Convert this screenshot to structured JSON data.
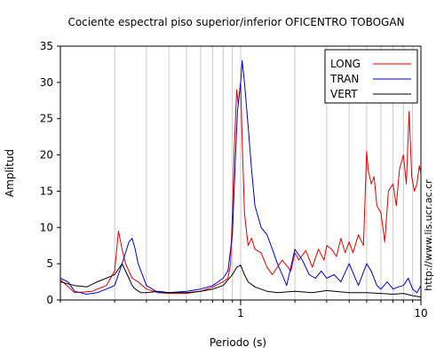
{
  "chart_data": {
    "type": "line",
    "title": "Cociente espectral piso superior/inferior OFICENTRO TOBOGAN",
    "xlabel": "Periodo (s)",
    "ylabel": "Amplitud",
    "x_scale": "log",
    "xlim": [
      0.1,
      10
    ],
    "ylim": [
      0,
      35
    ],
    "y_ticks": [
      "0",
      "5",
      "10",
      "15",
      "20",
      "25",
      "30",
      "35"
    ],
    "x_ticks": [
      {
        "value": 1,
        "label": "1"
      },
      {
        "value": 10,
        "label": "10"
      }
    ],
    "grid": "vertical",
    "legend_position": "top-right",
    "side_text": "http://www.lis.ucr.ac.cr",
    "colors": {
      "LONG": "#e00000",
      "TRAN": "#0000cc",
      "VERT": "#000000"
    },
    "series": [
      {
        "name": "LONG",
        "x": [
          0.1,
          0.12,
          0.15,
          0.18,
          0.2,
          0.21,
          0.22,
          0.23,
          0.25,
          0.27,
          0.3,
          0.35,
          0.4,
          0.5,
          0.6,
          0.7,
          0.8,
          0.85,
          0.88,
          0.9,
          0.92,
          0.95,
          0.97,
          1.0,
          1.02,
          1.05,
          1.1,
          1.15,
          1.2,
          1.3,
          1.4,
          1.5,
          1.7,
          1.9,
          2.0,
          2.1,
          2.3,
          2.5,
          2.7,
          2.9,
          3.0,
          3.2,
          3.4,
          3.6,
          3.8,
          4.0,
          4.2,
          4.5,
          4.8,
          5.0,
          5.1,
          5.3,
          5.5,
          5.7,
          6.0,
          6.3,
          6.6,
          7.0,
          7.3,
          7.6,
          8.0,
          8.3,
          8.6,
          8.9,
          9.2,
          9.5,
          9.8,
          10.0
        ],
        "y": [
          2.8,
          1.0,
          1.2,
          2.0,
          4.0,
          9.5,
          7.0,
          5.0,
          3.0,
          2.5,
          1.5,
          1.0,
          0.9,
          0.9,
          1.2,
          1.8,
          2.5,
          3.0,
          5.0,
          12.0,
          20.0,
          29.0,
          27.0,
          30.0,
          22.0,
          12.0,
          7.5,
          8.5,
          7.0,
          6.5,
          4.5,
          3.5,
          5.5,
          4.0,
          6.5,
          5.5,
          6.8,
          4.5,
          7.0,
          5.5,
          7.5,
          7.0,
          6.0,
          8.5,
          6.5,
          8.0,
          6.5,
          9.0,
          7.5,
          20.5,
          18.0,
          16.0,
          17.0,
          13.0,
          12.0,
          8.0,
          15.0,
          16.0,
          13.0,
          18.0,
          20.0,
          16.0,
          26.0,
          17.0,
          15.0,
          16.0,
          18.5,
          17.5
        ]
      },
      {
        "name": "TRAN",
        "x": [
          0.1,
          0.11,
          0.12,
          0.14,
          0.16,
          0.18,
          0.2,
          0.22,
          0.24,
          0.25,
          0.26,
          0.27,
          0.3,
          0.35,
          0.4,
          0.5,
          0.6,
          0.7,
          0.8,
          0.85,
          0.9,
          0.93,
          0.96,
          1.0,
          1.02,
          1.05,
          1.1,
          1.15,
          1.2,
          1.3,
          1.4,
          1.5,
          1.6,
          1.7,
          1.8,
          2.0,
          2.2,
          2.4,
          2.6,
          2.8,
          3.0,
          3.3,
          3.6,
          4.0,
          4.5,
          5.0,
          5.3,
          5.7,
          6.0,
          6.5,
          7.0,
          7.5,
          8.0,
          8.5,
          9.0,
          9.5,
          10.0
        ],
        "y": [
          3.0,
          2.5,
          1.2,
          0.8,
          1.0,
          1.5,
          2.0,
          5.0,
          8.0,
          8.5,
          7.0,
          5.0,
          2.0,
          1.0,
          1.0,
          1.2,
          1.5,
          2.0,
          3.0,
          4.0,
          9.0,
          18.0,
          26.0,
          30.0,
          33.0,
          30.0,
          24.0,
          18.0,
          13.0,
          10.0,
          9.0,
          7.0,
          5.0,
          3.5,
          2.0,
          7.0,
          5.5,
          3.5,
          3.0,
          4.0,
          3.0,
          3.5,
          2.5,
          5.0,
          2.0,
          5.0,
          4.0,
          2.0,
          1.5,
          2.5,
          1.5,
          1.8,
          2.0,
          3.0,
          1.5,
          1.0,
          2.0
        ]
      },
      {
        "name": "VERT",
        "x": [
          0.1,
          0.12,
          0.14,
          0.16,
          0.18,
          0.2,
          0.22,
          0.24,
          0.25,
          0.26,
          0.28,
          0.3,
          0.35,
          0.4,
          0.5,
          0.6,
          0.7,
          0.8,
          0.9,
          0.95,
          1.0,
          1.05,
          1.1,
          1.2,
          1.4,
          1.6,
          2.0,
          2.5,
          3.0,
          4.0,
          5.0,
          6.0,
          7.0,
          8.0,
          9.0,
          10.0
        ],
        "y": [
          2.5,
          2.0,
          1.8,
          2.5,
          3.0,
          3.5,
          5.0,
          3.0,
          2.0,
          1.5,
          1.0,
          1.0,
          1.2,
          1.0,
          1.0,
          1.2,
          1.5,
          2.0,
          3.5,
          4.5,
          4.8,
          3.5,
          2.5,
          1.8,
          1.2,
          1.0,
          1.2,
          1.0,
          1.3,
          1.0,
          1.0,
          0.9,
          0.8,
          0.9,
          0.6,
          0.4
        ]
      }
    ]
  }
}
